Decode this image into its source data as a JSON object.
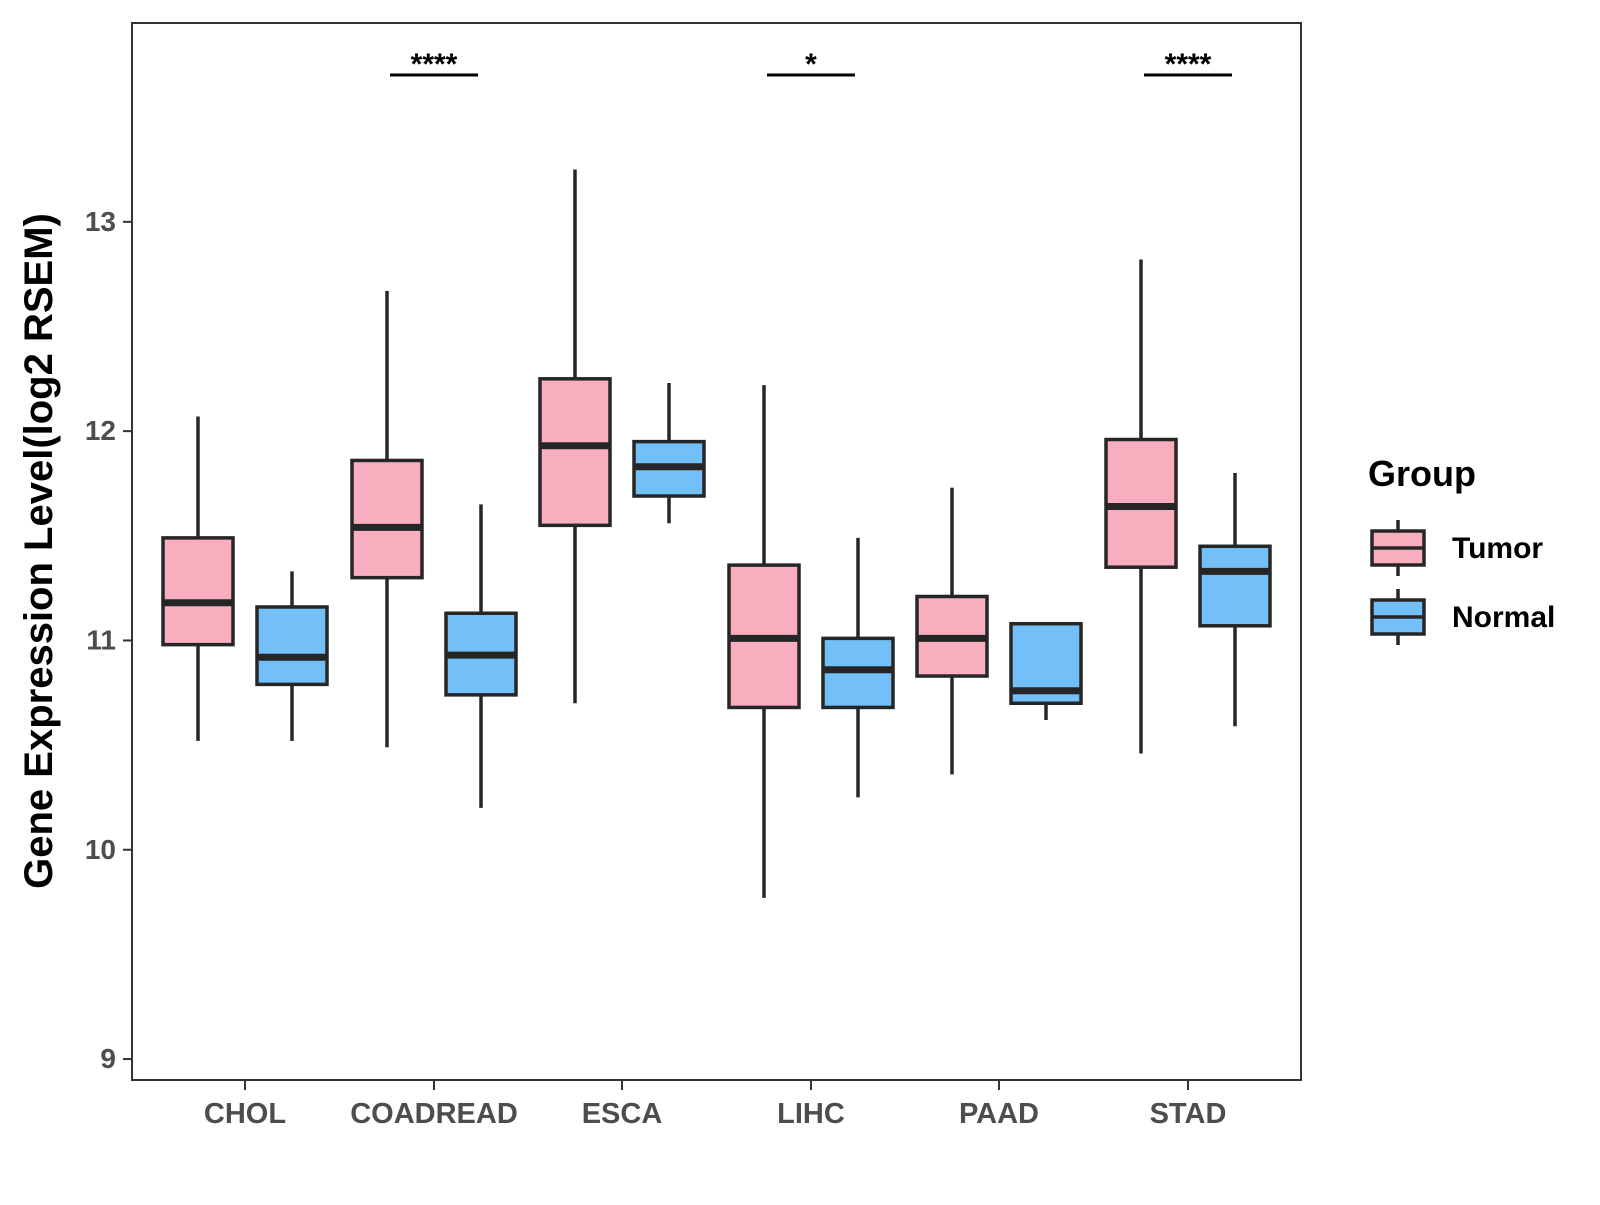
{
  "chart_data": {
    "type": "boxplot",
    "title": "",
    "xlabel": "",
    "ylabel": "Gene Expression Level(log2 RSEM)",
    "ylim": [
      8.9,
      13.95
    ],
    "yticks": [
      9,
      10,
      11,
      12,
      13
    ],
    "ytick_labels": [
      "9",
      "10",
      "11",
      "12",
      "13"
    ],
    "categories": [
      "CHOL",
      "COADREAD",
      "ESCA",
      "LIHC",
      "PAAD",
      "STAD"
    ],
    "grid": false,
    "legend": {
      "title": "Group",
      "position": "right",
      "entries": [
        {
          "label": "Tumor",
          "color": "#F9AEBF"
        },
        {
          "label": "Normal",
          "color": "#73BFF8"
        }
      ]
    },
    "series": [
      {
        "name": "Tumor",
        "color": "#F9AEBF",
        "boxes": [
          {
            "category": "CHOL",
            "whisker_low": 10.52,
            "q1": 10.98,
            "median": 11.18,
            "q3": 11.49,
            "whisker_high": 12.07
          },
          {
            "category": "COADREAD",
            "whisker_low": 10.49,
            "q1": 11.3,
            "median": 11.54,
            "q3": 11.86,
            "whisker_high": 12.67
          },
          {
            "category": "ESCA",
            "whisker_low": 10.7,
            "q1": 11.55,
            "median": 11.93,
            "q3": 12.25,
            "whisker_high": 13.25
          },
          {
            "category": "LIHC",
            "whisker_low": 9.77,
            "q1": 10.68,
            "median": 11.01,
            "q3": 11.36,
            "whisker_high": 12.22
          },
          {
            "category": "PAAD",
            "whisker_low": 10.36,
            "q1": 10.83,
            "median": 11.01,
            "q3": 11.21,
            "whisker_high": 11.73
          },
          {
            "category": "STAD",
            "whisker_low": 10.46,
            "q1": 11.35,
            "median": 11.64,
            "q3": 11.96,
            "whisker_high": 12.82
          }
        ]
      },
      {
        "name": "Normal",
        "color": "#73BFF8",
        "boxes": [
          {
            "category": "CHOL",
            "whisker_low": 10.52,
            "q1": 10.79,
            "median": 10.92,
            "q3": 11.16,
            "whisker_high": 11.33
          },
          {
            "category": "COADREAD",
            "whisker_low": 10.2,
            "q1": 10.74,
            "median": 10.93,
            "q3": 11.13,
            "whisker_high": 11.65
          },
          {
            "category": "ESCA",
            "whisker_low": 11.56,
            "q1": 11.69,
            "median": 11.83,
            "q3": 11.95,
            "whisker_high": 12.23
          },
          {
            "category": "LIHC",
            "whisker_low": 10.25,
            "q1": 10.68,
            "median": 10.86,
            "q3": 11.01,
            "whisker_high": 11.49
          },
          {
            "category": "PAAD",
            "whisker_low": 10.62,
            "q1": 10.7,
            "median": 10.76,
            "q3": 11.08,
            "whisker_high": 11.08
          },
          {
            "category": "STAD",
            "whisker_low": 10.59,
            "q1": 11.07,
            "median": 11.33,
            "q3": 11.45,
            "whisker_high": 11.8
          }
        ]
      }
    ],
    "annotations": [
      {
        "category": "COADREAD",
        "label": "****"
      },
      {
        "category": "LIHC",
        "label": "*"
      },
      {
        "category": "STAD",
        "label": "****"
      }
    ]
  }
}
